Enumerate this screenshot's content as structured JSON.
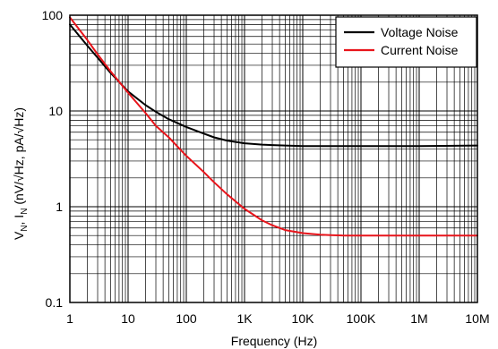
{
  "chart_data": {
    "type": "line",
    "x_scale": "log",
    "y_scale": "log",
    "xlim": [
      1,
      10000000
    ],
    "ylim": [
      0.1,
      100
    ],
    "grid": true,
    "legend_position": "top-right",
    "xlabel": "Frequency (Hz)",
    "ylabel": {
      "v": "V",
      "v_sub": "N",
      "sep": ", I",
      "i_sub": "N",
      "units": " (nV/√Hz, pA/√Hz)"
    },
    "x_ticks": [
      {
        "value": 1,
        "label": "1"
      },
      {
        "value": 10,
        "label": "10"
      },
      {
        "value": 100,
        "label": "100"
      },
      {
        "value": 1000,
        "label": "1K"
      },
      {
        "value": 10000,
        "label": "10K"
      },
      {
        "value": 100000,
        "label": "100K"
      },
      {
        "value": 1000000,
        "label": "1M"
      },
      {
        "value": 10000000,
        "label": "10M"
      }
    ],
    "y_ticks": [
      {
        "value": 0.1,
        "label": "0.1"
      },
      {
        "value": 1,
        "label": "1"
      },
      {
        "value": 10,
        "label": "10"
      },
      {
        "value": 100,
        "label": "100"
      }
    ],
    "series": [
      {
        "name": "Voltage Noise",
        "color": "#000000",
        "x": [
          1,
          2,
          3,
          5,
          10,
          20,
          30,
          50,
          100,
          200,
          300,
          500,
          1000,
          2000,
          3000,
          5000,
          10000,
          30000,
          100000,
          1000000,
          10000000
        ],
        "y": [
          80,
          48,
          36,
          25,
          16,
          11.5,
          9.8,
          8.2,
          6.8,
          5.8,
          5.3,
          4.9,
          4.6,
          4.45,
          4.4,
          4.35,
          4.3,
          4.3,
          4.3,
          4.3,
          4.35
        ]
      },
      {
        "name": "Current Noise",
        "color": "#e8141b",
        "x": [
          1,
          2,
          3,
          5,
          10,
          20,
          30,
          50,
          100,
          200,
          300,
          500,
          1000,
          2000,
          3000,
          5000,
          10000,
          20000,
          30000,
          50000,
          100000,
          200000,
          300000,
          1000000,
          10000000
        ],
        "y": [
          95,
          55,
          39,
          26,
          15.5,
          9.5,
          7,
          5.3,
          3.4,
          2.3,
          1.8,
          1.35,
          0.95,
          0.72,
          0.64,
          0.57,
          0.53,
          0.51,
          0.505,
          0.5,
          0.5,
          0.5,
          0.5,
          0.5,
          0.5
        ]
      }
    ]
  }
}
